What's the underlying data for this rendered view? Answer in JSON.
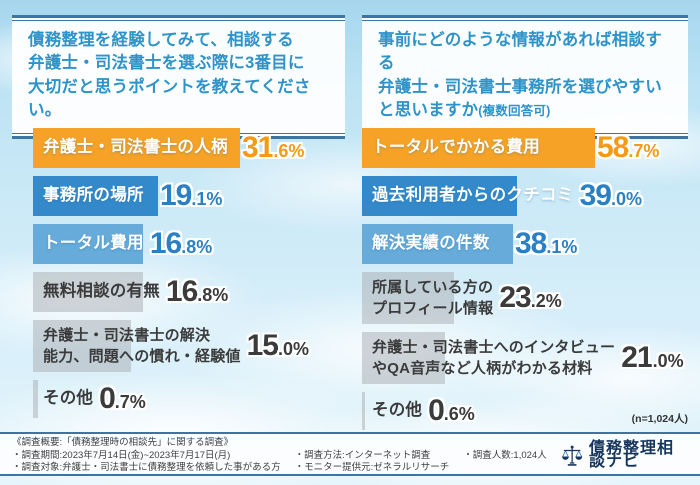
{
  "colors": {
    "orange": "#F5A226",
    "blue_dark": "#3389C9",
    "blue_light": "#66ABD9",
    "gray_bar": "#ADB3B8",
    "num_orange": "#F49A15",
    "num_blue": "#2B80C4",
    "text_dark": "#3B3B3B",
    "title_blue": "#2D93C8",
    "line_blue": "#3C74A2",
    "navy": "#17365E"
  },
  "left_panel": {
    "title_lines": [
      "債務整理を経験してみて、相談する",
      "弁護士・司法書士を選ぶ際に3番目に",
      "大切だと思うポイントを教えてください。"
    ],
    "items": [
      {
        "lines": [
          "弁護士・司法書士の人柄"
        ],
        "pct": 31.6,
        "pct_main": "31",
        "pct_rest": ".6%",
        "style": "orange"
      },
      {
        "lines": [
          "事務所の場所"
        ],
        "pct": 19.1,
        "pct_main": "19",
        "pct_rest": ".1%",
        "style": "blueDark"
      },
      {
        "lines": [
          "トータル費用"
        ],
        "pct": 16.8,
        "pct_main": "16",
        "pct_rest": ".8%",
        "style": "blueLight"
      },
      {
        "lines": [
          "無料相談の有無"
        ],
        "pct": 16.8,
        "pct_main": "16",
        "pct_rest": ".8%",
        "style": "gray"
      },
      {
        "lines": [
          "弁護士・司法書士の解決",
          "能力、問題への慣れ・経験値"
        ],
        "pct": 15.0,
        "pct_main": "15",
        "pct_rest": ".0%",
        "style": "gray"
      },
      {
        "lines": [
          "その他"
        ],
        "pct": 0.7,
        "pct_main": "0",
        "pct_rest": ".7%",
        "style": "gray",
        "last": true
      }
    ]
  },
  "right_panel": {
    "title_lines": [
      "事前にどのような情報があれば相談する",
      "弁護士・司法書士事務所を選びやすい",
      "と思いますか"
    ],
    "title_note": "(複数回答可)",
    "items": [
      {
        "lines": [
          "トータルでかかる費用"
        ],
        "pct": 58.7,
        "pct_main": "58",
        "pct_rest": ".7%",
        "style": "orange"
      },
      {
        "lines": [
          "過去利用者からのクチコミ"
        ],
        "pct": 39.0,
        "pct_main": "39",
        "pct_rest": ".0%",
        "style": "blueDark"
      },
      {
        "lines": [
          "解決実績の件数"
        ],
        "pct": 38.1,
        "pct_main": "38",
        "pct_rest": ".1%",
        "style": "blueLight"
      },
      {
        "lines": [
          "所属している方の",
          "プロフィール情報"
        ],
        "pct": 23.2,
        "pct_main": "23",
        "pct_rest": ".2%",
        "style": "gray"
      },
      {
        "lines": [
          "弁護士・司法書士へのインタビュー",
          "やQA音声など人柄がわかる材料"
        ],
        "pct": 21.0,
        "pct_main": "21",
        "pct_rest": ".0%",
        "style": "gray"
      },
      {
        "lines": [
          "その他"
        ],
        "pct": 0.6,
        "pct_main": "0",
        "pct_rest": ".6%",
        "style": "gray",
        "last": true
      }
    ]
  },
  "sample_note": "(n=1,024人)",
  "footer": {
    "overview": "《調査概要:「債務整理時の相談先」に関する調査》",
    "period": "・調査期間:2023年7月14日(金)~2023年7月17日(月)",
    "target": "・調査対象:弁護士・司法書士に債務整理を依頼した事がある方",
    "method": "・調査方法:インターネット調査",
    "monitor": "・モニター提供元:ゼネラルリサーチ",
    "count": "・調査人数:1,024人",
    "logo_text": "債務整理相談ナビ"
  },
  "chart_data": [
    {
      "type": "bar",
      "orientation": "horizontal",
      "unit": "%",
      "title": "債務整理を経験してみて、相談する弁護士・司法書士を選ぶ際に3番目に大切だと思うポイントを教えてください。",
      "categories": [
        "弁護士・司法書士の人柄",
        "事務所の場所",
        "トータル費用",
        "無料相談の有無",
        "弁護士・司法書士の解決能力、問題への慣れ・経験値",
        "その他"
      ],
      "values": [
        31.6,
        19.1,
        16.8,
        16.8,
        15.0,
        0.7
      ],
      "highlight": "top 3 bars colored (1st orange, 2nd dark blue, 3rd light blue)",
      "n": "1,024人"
    },
    {
      "type": "bar",
      "orientation": "horizontal",
      "unit": "%",
      "title": "事前にどのような情報があれば相談する弁護士・司法書士事務所を選びやすいと思いますか(複数回答可)",
      "categories": [
        "トータルでかかる費用",
        "過去利用者からのクチコミ",
        "解決実績の件数",
        "所属している方のプロフィール情報",
        "弁護士・司法書士へのインタビューやQA音声など人柄がわかる材料",
        "その他"
      ],
      "values": [
        58.7,
        39.0,
        38.1,
        23.2,
        21.0,
        0.6
      ],
      "highlight": "top 3 bars colored (1st orange, 2nd dark blue, 3rd light blue)",
      "n": "1,024人"
    }
  ]
}
